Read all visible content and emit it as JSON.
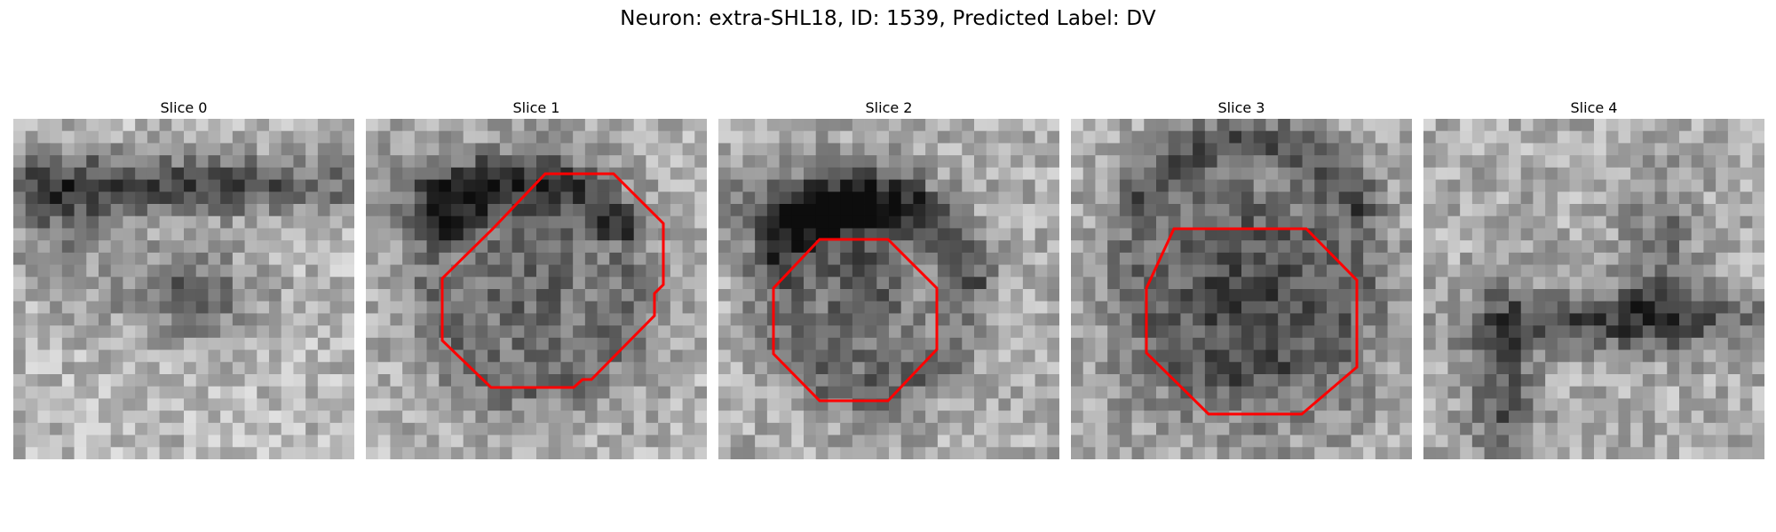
{
  "figure": {
    "title": "Neuron: extra-SHL18, ID: 1539, Predicted Label: DV"
  },
  "panels": [
    {
      "title": "Slice 0",
      "has_contour": false
    },
    {
      "title": "Slice 1",
      "has_contour": true
    },
    {
      "title": "Slice 2",
      "has_contour": true
    },
    {
      "title": "Slice 3",
      "has_contour": true
    },
    {
      "title": "Slice 4",
      "has_contour": false
    }
  ],
  "colors": {
    "contour": "#ff0000"
  },
  "image": {
    "colormap": "grayscale",
    "pixel_grid": "28x28 microscopy slice"
  }
}
